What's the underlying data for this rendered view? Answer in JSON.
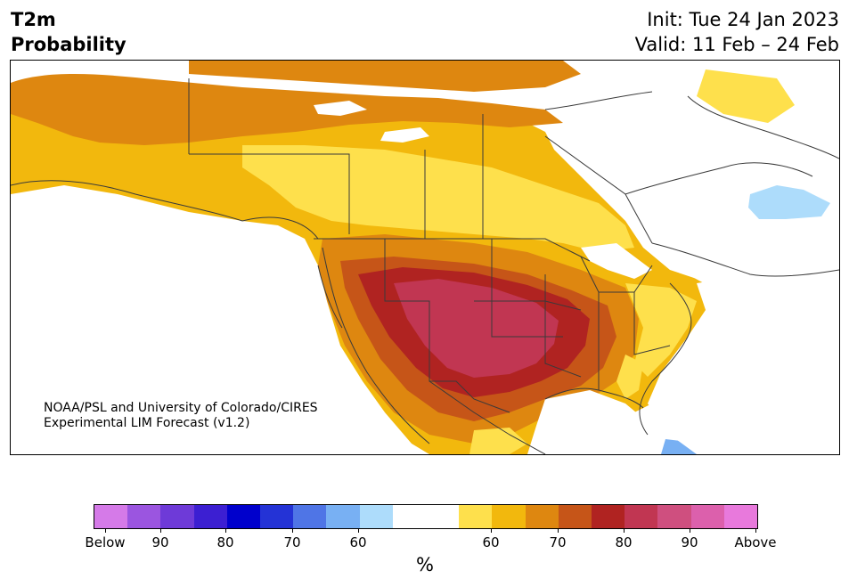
{
  "header": {
    "title": "T2m\nProbability",
    "init": "Init: Tue 24 Jan 2023\nValid: 11 Feb – 24 Feb"
  },
  "credit": "NOAA/PSL and University of Colorado/CIRES\nExperimental LIM Forecast (v1.2)",
  "colorbar": {
    "colors": [
      "#d57ae8",
      "#9b55e0",
      "#6e3ad8",
      "#3c1fd2",
      "#0000cc",
      "#2433d6",
      "#4f75e6",
      "#78b0f3",
      "#addcfb",
      "#ffffff",
      "#ffffff",
      "#fee04c",
      "#f2b80d",
      "#de8710",
      "#c65518",
      "#b02321",
      "#c13652",
      "#cf4f7f",
      "#dc60ac",
      "#e879dc"
    ],
    "labels": [
      "Below",
      "90",
      "80",
      "70",
      "60",
      "60",
      "70",
      "80",
      "90",
      "Above"
    ],
    "unit": "%"
  },
  "map_layers": {
    "below_light_blue": "#addcfb",
    "below_mid_blue": "#78b0f3",
    "above_60": "#fee04c",
    "above_65": "#f2b80d",
    "above_70": "#de8710",
    "above_75": "#c65518",
    "above_80": "#b02321",
    "above_85": "#c13652",
    "boundary_color": "#3a3a3a"
  }
}
